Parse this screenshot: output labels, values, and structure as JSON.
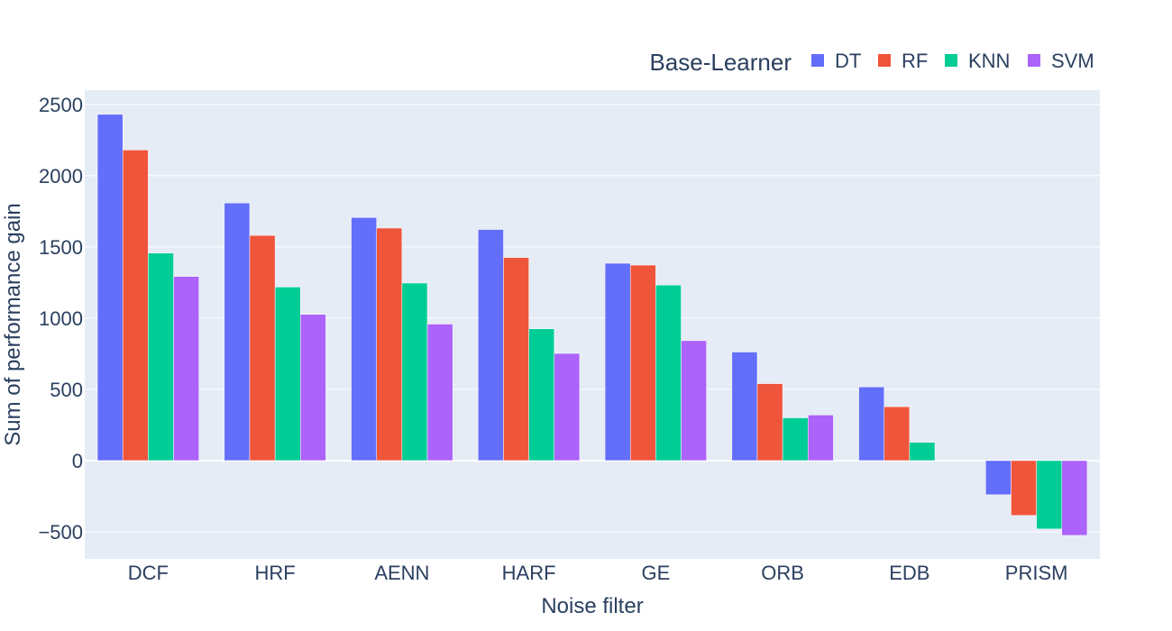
{
  "chart_data": {
    "type": "bar",
    "xlabel": "Noise filter",
    "ylabel": "Sum of performance gain",
    "categories": [
      "DCF",
      "HRF",
      "AENN",
      "HARF",
      "GE",
      "ORB",
      "EDB",
      "PRISM"
    ],
    "ylim": [
      -690,
      2600
    ],
    "yticks": [
      2500,
      2000,
      1500,
      1000,
      500,
      0,
      -500
    ],
    "ytick_labels": [
      "2500",
      "2000",
      "1500",
      "1000",
      "500",
      "0",
      "−500"
    ],
    "grid": true,
    "legend": {
      "title": "Base-Learner",
      "position": "top-right",
      "orientation": "horizontal"
    },
    "series": [
      {
        "name": "DT",
        "color": "#636efa",
        "values": [
          2430,
          1808,
          1706,
          1622,
          1385,
          762,
          517,
          -240
        ]
      },
      {
        "name": "RF",
        "color": "#ef553b",
        "values": [
          2180,
          1580,
          1632,
          1425,
          1372,
          540,
          378,
          -385
        ]
      },
      {
        "name": "KNN",
        "color": "#00cc96",
        "values": [
          1456,
          1218,
          1246,
          925,
          1232,
          300,
          128,
          -480
        ]
      },
      {
        "name": "SVM",
        "color": "#ab63fa",
        "values": [
          1292,
          1026,
          958,
          752,
          842,
          320,
          0,
          -525
        ]
      }
    ]
  }
}
